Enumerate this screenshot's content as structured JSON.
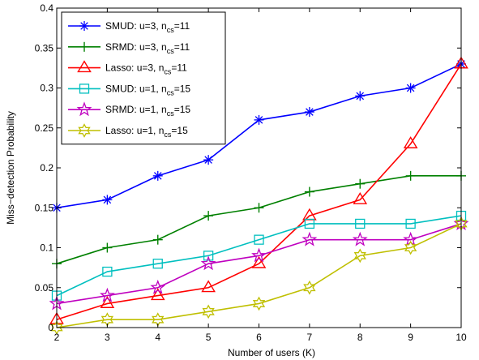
{
  "chart_data": {
    "type": "line",
    "title": "",
    "xlabel": "Number of users (K)",
    "ylabel": "Miss−detection Probability",
    "xlim": [
      2,
      10
    ],
    "ylim": [
      0,
      0.4
    ],
    "x": [
      2,
      3,
      4,
      5,
      6,
      7,
      8,
      9,
      10
    ],
    "x_ticks": [
      "2",
      "3",
      "4",
      "5",
      "6",
      "7",
      "8",
      "9",
      "10"
    ],
    "y_ticks": [
      "0",
      "0.05",
      "0.1",
      "0.15",
      "0.2",
      "0.25",
      "0.3",
      "0.35",
      "0.4"
    ],
    "y_tick_values": [
      0,
      0.05,
      0.1,
      0.15,
      0.2,
      0.25,
      0.3,
      0.35,
      0.4
    ],
    "grid": false,
    "legend_position": "top-left",
    "series": [
      {
        "name": "SMUD: u=3, n",
        "sub": "cs",
        "suffix": "=11",
        "color": "#0000ff",
        "marker": "asterisk",
        "values": [
          0.15,
          0.16,
          0.19,
          0.21,
          0.26,
          0.27,
          0.29,
          0.3,
          0.33
        ]
      },
      {
        "name": "SRMD: u=3, n",
        "sub": "cs",
        "suffix": "=11",
        "color": "#008000",
        "marker": "plus",
        "values": [
          0.08,
          0.1,
          0.11,
          0.14,
          0.15,
          0.17,
          0.18,
          0.19,
          0.19
        ]
      },
      {
        "name": "Lasso: u=3, n",
        "sub": "cs",
        "suffix": "=11",
        "color": "#ff0000",
        "marker": "triangle",
        "values": [
          0.01,
          0.03,
          0.04,
          0.05,
          0.08,
          0.14,
          0.16,
          0.23,
          0.33
        ]
      },
      {
        "name": "SMUD: u=1, n",
        "sub": "cs",
        "suffix": "=15",
        "color": "#00bfbf",
        "marker": "square",
        "values": [
          0.04,
          0.07,
          0.08,
          0.09,
          0.11,
          0.13,
          0.13,
          0.13,
          0.14
        ]
      },
      {
        "name": "SRMD: u=1, n",
        "sub": "cs",
        "suffix": "=15",
        "color": "#bf00bf",
        "marker": "pentagram",
        "values": [
          0.03,
          0.04,
          0.05,
          0.08,
          0.09,
          0.11,
          0.11,
          0.11,
          0.13
        ]
      },
      {
        "name": "Lasso: u=1, n",
        "sub": "cs",
        "suffix": "=15",
        "color": "#bfbf00",
        "marker": "hexagram",
        "values": [
          0.0,
          0.01,
          0.01,
          0.02,
          0.03,
          0.05,
          0.09,
          0.1,
          0.13
        ]
      }
    ]
  }
}
